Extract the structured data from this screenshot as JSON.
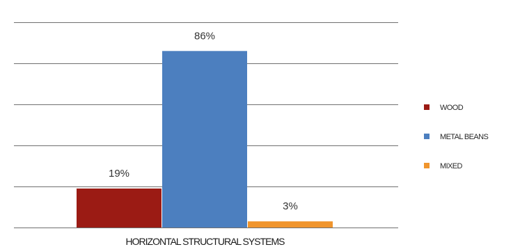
{
  "chart_data": {
    "type": "bar",
    "categories": [
      "HORIZONTAL STRUCTURAL SYSTEMS"
    ],
    "series": [
      {
        "name": "WOOD",
        "values": [
          19
        ],
        "color": "#9b1b14",
        "data_label": "19%"
      },
      {
        "name": "METAL BEANS",
        "values": [
          86
        ],
        "color": "#4c7fbf",
        "data_label": "86%"
      },
      {
        "name": "MIXED",
        "values": [
          3
        ],
        "color": "#f0952d",
        "data_label": "3%"
      }
    ],
    "ylim": [
      0,
      100
    ],
    "grid": true,
    "legend_position": "right",
    "title": "",
    "xlabel": "",
    "ylabel": ""
  }
}
